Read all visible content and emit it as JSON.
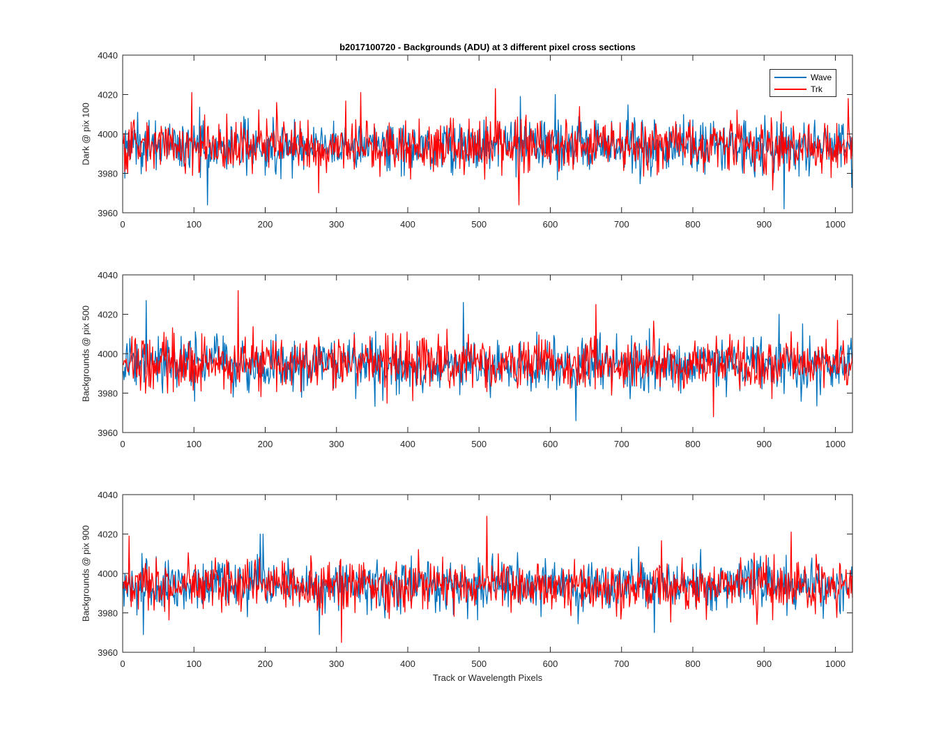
{
  "chart_data": {
    "type": "line",
    "title": "b2017100720 - Backgrounds (ADU) at 3 different pixel cross sections",
    "xlabel": "Track or Wavelength Pixels",
    "legend": {
      "placement": "top-right",
      "entries": [
        "Wave",
        "Trk"
      ]
    },
    "colors": {
      "Wave": "#0072bd",
      "Trk": "#ff0000",
      "axes": "#262626"
    },
    "n_points": 1024,
    "xlim": [
      0,
      1024
    ],
    "ylim": [
      3960,
      4040
    ],
    "xticks": [
      0,
      100,
      200,
      300,
      400,
      500,
      600,
      700,
      800,
      900,
      1000
    ],
    "yticks": [
      3960,
      3980,
      4000,
      4020,
      4040
    ],
    "grid": false,
    "panels": [
      {
        "ylabel": "Dark @ pix 100",
        "series": [
          {
            "name": "Wave",
            "mean": 3994,
            "min": 3962,
            "max": 4021,
            "peaks": [
              [
                118,
                3964
              ],
              [
                927,
                3962
              ],
              [
                606,
                4020
              ],
              [
                557,
                4019
              ]
            ]
          },
          {
            "name": "Trk",
            "mean": 3994,
            "min": 3964,
            "max": 4023,
            "peaks": [
              [
                522,
                4023
              ],
              [
                333,
                4021
              ],
              [
                96,
                4021
              ],
              [
                555,
                3964
              ],
              [
                1017,
                4018
              ]
            ]
          }
        ]
      },
      {
        "ylabel": "Backgrounds @ pix 500",
        "series": [
          {
            "name": "Wave",
            "mean": 3994,
            "min": 3966,
            "max": 4027,
            "peaks": [
              [
                32,
                4027
              ],
              [
                477,
                4026
              ],
              [
                635,
                3966
              ],
              [
                920,
                4020
              ]
            ]
          },
          {
            "name": "Trk",
            "mean": 3995,
            "min": 3968,
            "max": 4032,
            "peaks": [
              [
                161,
                4032
              ],
              [
                663,
                4025
              ],
              [
                828,
                3968
              ],
              [
                1002,
                4017
              ]
            ]
          }
        ]
      },
      {
        "ylabel": "Backgrounds @ pix 900",
        "series": [
          {
            "name": "Wave",
            "mean": 3994,
            "min": 3969,
            "max": 4020,
            "peaks": [
              [
                192,
                4020
              ],
              [
                196,
                4020
              ],
              [
                28,
                3969
              ],
              [
                275,
                3969
              ],
              [
                745,
                3970
              ]
            ]
          },
          {
            "name": "Trk",
            "mean": 3994,
            "min": 3965,
            "max": 4029,
            "peaks": [
              [
                510,
                4029
              ],
              [
                306,
                3965
              ],
              [
                937,
                4021
              ],
              [
                8,
                4019
              ]
            ]
          }
        ]
      }
    ]
  }
}
